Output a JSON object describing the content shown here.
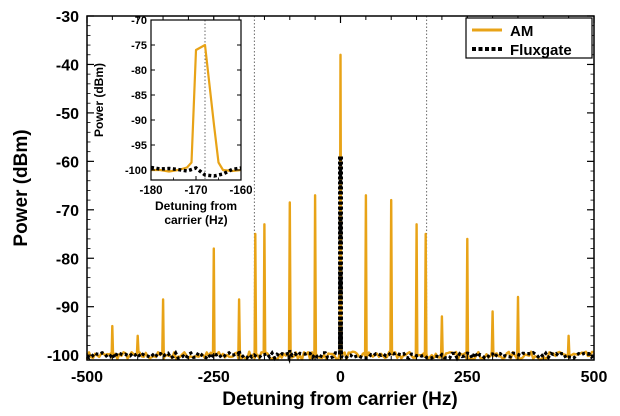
{
  "chart_data": [
    {
      "type": "line",
      "title": "",
      "xlabel": "Detuning from carrier (Hz)",
      "ylabel": "Power (dBm)",
      "xlim": [
        -500,
        500
      ],
      "ylim": [
        -101,
        -30
      ],
      "xticks": [
        -500,
        -250,
        0,
        250,
        500
      ],
      "yticks": [
        -100,
        -90,
        -80,
        -70,
        -60,
        -50,
        -40,
        -30
      ],
      "xtick_labels": [
        "-500",
        "-250",
        "0",
        "250",
        "500"
      ],
      "ytick_labels": [
        "-100",
        "-90",
        "-80",
        "-70",
        "-60",
        "-50",
        "-40",
        "-30"
      ],
      "grid": false,
      "legend_position": "top-right",
      "vertical_reference_lines_x": [
        -170,
        170
      ],
      "series": [
        {
          "name": "AM",
          "color": "#E8A317",
          "style": "solid",
          "baseline": -100,
          "peaks": [
            {
              "x": -450,
              "y": -94
            },
            {
              "x": -400,
              "y": -96
            },
            {
              "x": -350,
              "y": -88.5
            },
            {
              "x": -250,
              "y": -78
            },
            {
              "x": -200,
              "y": -88.5
            },
            {
              "x": -168,
              "y": -75
            },
            {
              "x": -150,
              "y": -73
            },
            {
              "x": -100,
              "y": -68.5
            },
            {
              "x": -50,
              "y": -67
            },
            {
              "x": 0,
              "y": -38
            },
            {
              "x": 50,
              "y": -67
            },
            {
              "x": 100,
              "y": -68
            },
            {
              "x": 150,
              "y": -73
            },
            {
              "x": 168,
              "y": -75
            },
            {
              "x": 200,
              "y": -92
            },
            {
              "x": 250,
              "y": -76
            },
            {
              "x": 300,
              "y": -91
            },
            {
              "x": 350,
              "y": -88
            },
            {
              "x": 450,
              "y": -96
            }
          ]
        },
        {
          "name": "Fluxgate",
          "color": "#000000",
          "style": "dotted",
          "baseline": -100,
          "peaks": [
            {
              "x": -200,
              "y": -99
            },
            {
              "x": -100,
              "y": -99
            },
            {
              "x": 0,
              "y": -59
            }
          ]
        }
      ]
    },
    {
      "type": "line",
      "title": "",
      "xlabel": "Detuning from carrier (Hz)",
      "ylabel": "Power (dBm)",
      "xlim": [
        -180,
        -160
      ],
      "ylim": [
        -102,
        -70
      ],
      "xticks": [
        -180,
        -170,
        -160
      ],
      "yticks": [
        -100,
        -95,
        -90,
        -85,
        -80,
        -75,
        -70
      ],
      "xtick_labels": [
        "-180",
        "-170",
        "-160"
      ],
      "ytick_labels": [
        "-100",
        "-95",
        "-90",
        "-85",
        "-80",
        "-75",
        "-70"
      ],
      "vertical_reference_lines_x": [
        -168
      ],
      "series": [
        {
          "name": "AM",
          "color": "#E8A317",
          "style": "solid",
          "x": [
            -180,
            -178,
            -176,
            -174,
            -172,
            -171,
            -170,
            -169,
            -168,
            -167,
            -166,
            -165,
            -164,
            -162,
            -160
          ],
          "y": [
            -100,
            -100,
            -100.3,
            -100,
            -99.5,
            -98.5,
            -76,
            -75.5,
            -75,
            -83,
            -91,
            -98.5,
            -100,
            -100.2,
            -100
          ]
        },
        {
          "name": "Fluxgate",
          "color": "#000000",
          "style": "dotted",
          "x": [
            -180,
            -178,
            -176,
            -174,
            -172,
            -170,
            -168,
            -166,
            -164,
            -162,
            -160
          ],
          "y": [
            -99.5,
            -99.8,
            -99.7,
            -99.9,
            -100.2,
            -99.6,
            -101,
            -101.2,
            -100.8,
            -99.9,
            -99.6
          ]
        }
      ]
    }
  ]
}
